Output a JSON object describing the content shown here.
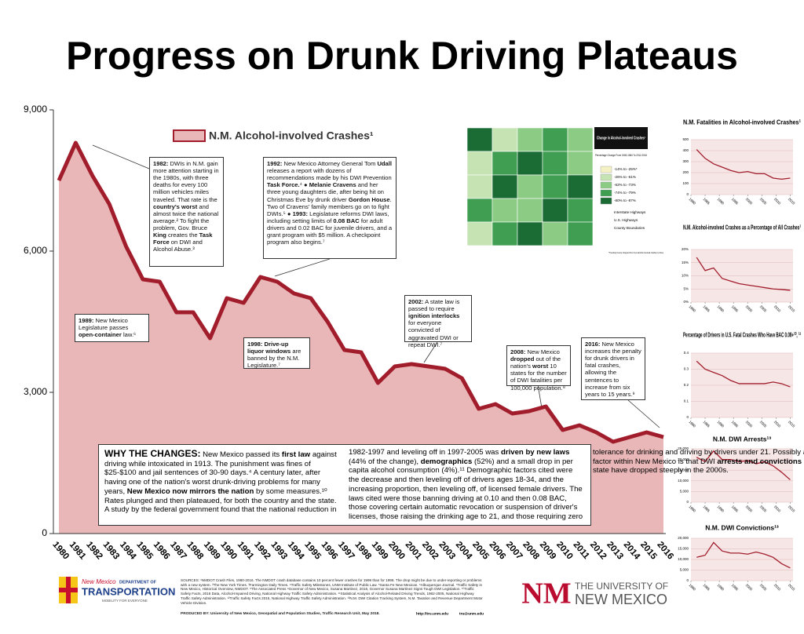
{
  "chart_data": [
    {
      "type": "area",
      "title": "Progress on Drunk Driving Plateaus",
      "legend": "N.M. Alcohol-involved Crashes¹",
      "color": "#e9b7b7",
      "line_color": "#a11d2c",
      "categories": [
        "1980",
        "1981",
        "1982",
        "1983",
        "1984",
        "1985",
        "1986",
        "1987",
        "1988",
        "1989",
        "1990",
        "1991",
        "1992",
        "1993",
        "1994",
        "1995",
        "1996",
        "1997",
        "1998",
        "1999",
        "2000",
        "2001",
        "2002",
        "2003",
        "2004",
        "2005",
        "2006",
        "2007",
        "2008",
        "2009",
        "2010",
        "2011",
        "2012",
        "2013",
        "2014",
        "2015",
        "2016"
      ],
      "values": [
        7500,
        8300,
        7600,
        7000,
        6100,
        5400,
        5350,
        4700,
        4700,
        4150,
        5000,
        4900,
        5450,
        5350,
        5100,
        5000,
        4500,
        3900,
        3850,
        3200,
        3550,
        3600,
        3550,
        3500,
        3300,
        2650,
        2750,
        2550,
        2600,
        2700,
        2200,
        2300,
        2150,
        1950,
        2050,
        2150,
        2050
      ],
      "ylim": [
        0,
        9000
      ],
      "yticks": [
        {
          "value": 0,
          "label": "0"
        },
        {
          "value": 3000,
          "label": "3,000"
        },
        {
          "value": 6000,
          "label": "6,000"
        },
        {
          "value": 9000,
          "label": "9,000"
        }
      ]
    },
    {
      "type": "line",
      "title": "N.M. Fatalities in Alcohol-involved Crashes¹",
      "color": "#a11d2c",
      "x": [
        1982,
        1985,
        1988,
        1991,
        1994,
        1997,
        2000,
        2003,
        2006,
        2009,
        2012,
        2015
      ],
      "values": [
        410,
        330,
        280,
        250,
        220,
        200,
        210,
        190,
        190,
        150,
        140,
        150
      ],
      "xlim": [
        1980,
        2016
      ],
      "xticks": [
        1980,
        1985,
        1990,
        1995,
        2000,
        2005,
        2010,
        2015
      ],
      "ylim": [
        0,
        500
      ],
      "yticks": [
        0,
        100,
        200,
        300,
        400,
        500
      ]
    },
    {
      "type": "line",
      "title": "N.M. Alcohol-involved Crashes as a Percentage of All Crashes¹",
      "color": "#a11d2c",
      "x": [
        1982,
        1985,
        1988,
        1991,
        1994,
        1997,
        2000,
        2003,
        2006,
        2009,
        2012,
        2015
      ],
      "values": [
        17,
        12,
        13,
        9,
        8,
        7,
        6.5,
        6,
        5.5,
        5,
        4.8,
        4.5
      ],
      "xlim": [
        1980,
        2016
      ],
      "xticks": [
        1980,
        1985,
        1990,
        1995,
        2000,
        2005,
        2010,
        2015
      ],
      "ylim": [
        0,
        20
      ],
      "yticks": [
        {
          "value": 0,
          "label": "0%"
        },
        {
          "value": 5,
          "label": "5%"
        },
        {
          "value": 10,
          "label": "10%"
        },
        {
          "value": 15,
          "label": "15%"
        },
        {
          "value": 20,
          "label": "20%"
        }
      ]
    },
    {
      "type": "line",
      "title": "Percentage of Drivers in U.S. Fatal Crashes Who Have BAC 0.08+¹⁰, ¹²",
      "color": "#a11d2c",
      "x": [
        1982,
        1985,
        1988,
        1991,
        1994,
        1997,
        2000,
        2003,
        2006,
        2009,
        2012,
        2015
      ],
      "values": [
        0.35,
        0.3,
        0.28,
        0.26,
        0.23,
        0.21,
        0.21,
        0.21,
        0.21,
        0.22,
        0.21,
        0.19
      ],
      "xlim": [
        1980,
        2016
      ],
      "xticks": [
        1980,
        1985,
        1990,
        1995,
        2000,
        2005,
        2010,
        2015
      ],
      "ylim": [
        0,
        0.4
      ],
      "yticks": [
        0,
        0.1,
        0.2,
        0.3,
        0.4
      ]
    },
    {
      "type": "line",
      "title": "N.M. DWI Arrests¹³",
      "color": "#a11d2c",
      "x": [
        1982,
        1985,
        1988,
        1991,
        1994,
        1997,
        2000,
        2003,
        2006,
        2009,
        2012,
        2015
      ],
      "values": [
        21000,
        19000,
        24000,
        20000,
        20000,
        19000,
        19500,
        18000,
        19000,
        17000,
        14000,
        10500
      ],
      "xlim": [
        1980,
        2016
      ],
      "xticks": [
        1980,
        1985,
        1990,
        1995,
        2000,
        2005,
        2010,
        2015
      ],
      "ylim": [
        0,
        25000
      ],
      "yticks": [
        {
          "value": 0,
          "label": "0"
        },
        {
          "value": 5000,
          "label": "5,000"
        },
        {
          "value": 10000,
          "label": "10,000"
        },
        {
          "value": 15000,
          "label": "15,000"
        },
        {
          "value": 20000,
          "label": "20,000"
        },
        {
          "value": 25000,
          "label": "25,000"
        }
      ]
    },
    {
      "type": "line",
      "title": "N.M. DWI Convictions¹³",
      "color": "#a11d2c",
      "x": [
        1982,
        1985,
        1988,
        1991,
        1994,
        1997,
        2000,
        2003,
        2006,
        2009,
        2012,
        2015
      ],
      "values": [
        11000,
        12000,
        18000,
        14000,
        13000,
        13000,
        12500,
        13500,
        12500,
        11000,
        8000,
        6000
      ],
      "xlim": [
        1980,
        2016
      ],
      "xticks": [
        1980,
        1985,
        1990,
        1995,
        2000,
        2005,
        2010,
        2015
      ],
      "ylim": [
        0,
        20000
      ],
      "yticks": [
        {
          "value": 0,
          "label": "0"
        },
        {
          "value": 5000,
          "label": "5,000"
        },
        {
          "value": 10000,
          "label": "10,000"
        },
        {
          "value": 15000,
          "label": "15,000"
        },
        {
          "value": 20000,
          "label": "20,000"
        }
      ]
    }
  ],
  "annotations": [
    {
      "parts": [
        {
          "text": "1982:",
          "bold": true
        },
        {
          "text": " DWIs in N.M. gain more attention starting in the 1980s, with three deaths for every 100 million vehicles miles traveled. That rate is the "
        },
        {
          "text": "country's worst",
          "bold": true
        },
        {
          "text": " and almost twice the national average.² To fight the problem, Gov. Bruce "
        },
        {
          "text": "King",
          "bold": true
        },
        {
          "text": " creates the "
        },
        {
          "text": "Task Force",
          "bold": true
        },
        {
          "text": " on DWI and Alcohol Abuse.³"
        }
      ]
    },
    {
      "parts": [
        {
          "text": "1992:",
          "bold": true
        },
        {
          "text": " New Mexico Attorney General Tom "
        },
        {
          "text": "Udall",
          "bold": true
        },
        {
          "text": " releases a report with dozens of recommendations made by his DWI Prevention "
        },
        {
          "text": "Task Force.",
          "bold": true
        },
        {
          "text": "⁴ ● "
        },
        {
          "text": "Melanie Cravens",
          "bold": true
        },
        {
          "text": " and her three young daughters die, after being hit on Christmas Eve by drunk driver "
        },
        {
          "text": "Gordon House",
          "bold": true
        },
        {
          "text": ". Two of Cravens' family members go on to fight DWIs.⁵ ● "
        },
        {
          "text": "1993:",
          "bold": true
        },
        {
          "text": " Legislature reforms DWI laws, including setting limits of "
        },
        {
          "text": "0.08 BAC",
          "bold": true
        },
        {
          "text": " for adult drivers and 0.02 BAC for juvenile drivers, and a grant program with $5 million. A checkpoint program also begins.⁷"
        }
      ]
    },
    {
      "parts": [
        {
          "text": "1989:",
          "bold": true
        },
        {
          "text": " New Mexico Legislature passes "
        },
        {
          "text": "open-container",
          "bold": true
        },
        {
          "text": " law.⁶"
        }
      ]
    },
    {
      "parts": [
        {
          "text": "1998: Drive-up liquor windows",
          "bold": true
        },
        {
          "text": " are banned by the N.M. Legislature.⁷"
        }
      ]
    },
    {
      "parts": [
        {
          "text": "2002:",
          "bold": true
        },
        {
          "text": " A state law is passed to require "
        },
        {
          "text": "ignition interlocks",
          "bold": true
        },
        {
          "text": " for everyone convicted of aggravated DWI or repeat DWI.⁷"
        }
      ]
    },
    {
      "parts": [
        {
          "text": "2008:",
          "bold": true
        },
        {
          "text": " New Mexico "
        },
        {
          "text": "dropped",
          "bold": true
        },
        {
          "text": " out of the nation's "
        },
        {
          "text": "worst",
          "bold": true
        },
        {
          "text": " 10 states for the number of DWI fatalities per 100,000 population.⁸"
        }
      ]
    },
    {
      "parts": [
        {
          "text": "2016:",
          "bold": true
        },
        {
          "text": " New Mexico increases the penalty for drunk drivers in fatal crashes, allowing the sentences to increase from six years to 15 years.⁹"
        }
      ]
    }
  ],
  "why": {
    "parts": [
      {
        "text": "WHY THE CHANGES:",
        "bold": true
      },
      {
        "text": " New Mexico passed its "
      },
      {
        "text": "first law",
        "bold": true
      },
      {
        "text": " against driving while intoxicated in 1913. The punishment was fines of $25-$100 and jail sentences of 30-90 days.⁴ A century later, after having one of the nation's worst drunk-driving problems for many years, "
      },
      {
        "text": "New Mexico now mirrors the nation",
        "bold": true
      },
      {
        "text": " by some measures.¹⁰ Rates plunged and then plateaued, for both the country and the state. A study by the federal government found that the national reduction in 1982-1997 and leveling off in 1997-2005 was "
      },
      {
        "text": "driven by new laws",
        "bold": true
      },
      {
        "text": " (44% of the change), "
      },
      {
        "text": "demographics",
        "bold": true
      },
      {
        "text": " (52%) and a small drop in per capita alcohol consumption (4%).¹¹ Demographic factors cited were the decrease and then leveling off of drivers ages 18-34, and the increasing proportion, then leveling off, of licensed female drivers. The laws cited were those banning driving at 0.10 and then 0.08 BAC, those covering certain automatic revocation or suspension of driver's licenses, those raising the drinking age to 21, and those requiring zero tolerance for drinking and driving by drivers under 21. Possibly another factor within New Mexico is that DWI "
      },
      {
        "text": "arrests and convictions",
        "bold": true
      },
      {
        "text": " in the state have dropped steeply in the 2000s."
      }
    ]
  },
  "map": {
    "title": "Change in Alcohol-involved Crashes¹",
    "subtitle": "Percentage Change From 1980-1984 To 2012-2016",
    "legend": [
      {
        "label": "-14% to -25%*",
        "color": "#f4f2c4"
      },
      {
        "label": "-26% to -61%",
        "color": "#c6e3b4"
      },
      {
        "label": "-62% to -73%",
        "color": "#8ccb84"
      },
      {
        "label": "-74% to -79%",
        "color": "#3f9e52"
      },
      {
        "label": "-80% to -87%",
        "color": "#1b6b35"
      }
    ],
    "roads": [
      "Interstate Highways",
      "U.S. Highways",
      "County Boundaries"
    ],
    "note": "*Trending County dropped from four alcohol-involved crashes to three"
  },
  "footer": {
    "dot": [
      "New Mexico",
      "DEPARTMENT OF",
      "TRANSPORTATION",
      "MOBILITY FOR EVERYONE"
    ],
    "unm": [
      "THE UNIVERSITY OF",
      "NEW MEXICO"
    ],
    "sources": "SOURCES: ¹NMDOT Crash Files, 1980-2016. The NMDOT crash database contains 10 percent fewer crashes for 1999 than for 1998. The drop might be due to under-reporting or problems with a new system. ²The New York Times. ³Farmington Daily Times. ⁴Traffic Safety Milestones, UNM Institute of Public Law. ⁵Santa Fe New Mexican. ⁶Albuquerque Journal. ⁷Traffic Safety in New Mexico, Historical Overview, NMDOT. ⁸The Associated Press ⁹Governor of New Mexico, Susana Martinez, 2016, Governor Susana Martinez Signs Tough DWI Legislation. ¹⁰Traffic Safety Facts, 2016 Data, Alcohol-Impaired Driving, National Highway Traffic Safety Administration. ¹¹Statistical Analysis of Alcohol-Related Driving Trends, 1982-2005, National Highway Traffic Safety Administration. ¹²Traffic Safety Facts 2015, National Highway Traffic Safety Administration. ¹³N.M. DWI Citation Tracking System, N.M. Taxation and Revenue Department Motor Vehicle Division.",
    "produced": "PRODUCED BY: University of New Mexico, Geospatial and Population Studies, Traffic Research Unit, May 2018.",
    "url": "http://tru.unm.edu",
    "email": "tru@unm.edu"
  }
}
